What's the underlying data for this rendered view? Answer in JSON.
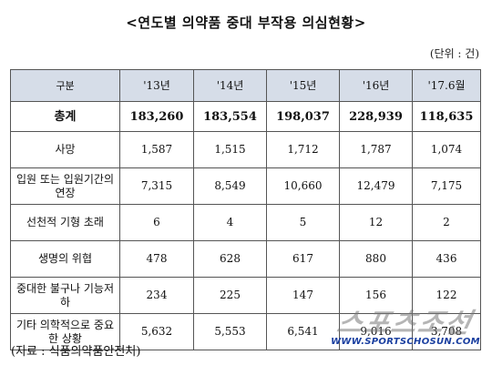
{
  "title": "<연도별 의약품 중대 부작용 의심현황>",
  "unit": "(단위 : 건)",
  "table": {
    "header": [
      "구분",
      "'13년",
      "'14년",
      "'15년",
      "'16년",
      "'17.6월"
    ],
    "rows": [
      {
        "label": "총계",
        "values": [
          "183,260",
          "183,554",
          "198,037",
          "228,939",
          "118,635"
        ]
      },
      {
        "label": "사망",
        "values": [
          "1,587",
          "1,515",
          "1,712",
          "1,787",
          "1,074"
        ]
      },
      {
        "label": "입원 또는 입원기간의 연장",
        "values": [
          "7,315",
          "8,549",
          "10,660",
          "12,479",
          "7,175"
        ]
      },
      {
        "label": "선천적 기형 초래",
        "values": [
          "6",
          "4",
          "5",
          "12",
          "2"
        ]
      },
      {
        "label": "생명의 위협",
        "values": [
          "478",
          "628",
          "617",
          "880",
          "436"
        ]
      },
      {
        "label": "중대한 불구나 기능저하",
        "values": [
          "234",
          "225",
          "147",
          "156",
          "122"
        ]
      },
      {
        "label": "기타 의학적으로 중요한 상황",
        "values": [
          "5,632",
          "5,553",
          "6,541",
          "9,016",
          "3,708"
        ]
      }
    ]
  },
  "source": "(자료 : 식품의약품안전처)",
  "watermark": {
    "logo": "스포츠조선",
    "url": "WWW.SPORTSCHOSUN.COM"
  }
}
